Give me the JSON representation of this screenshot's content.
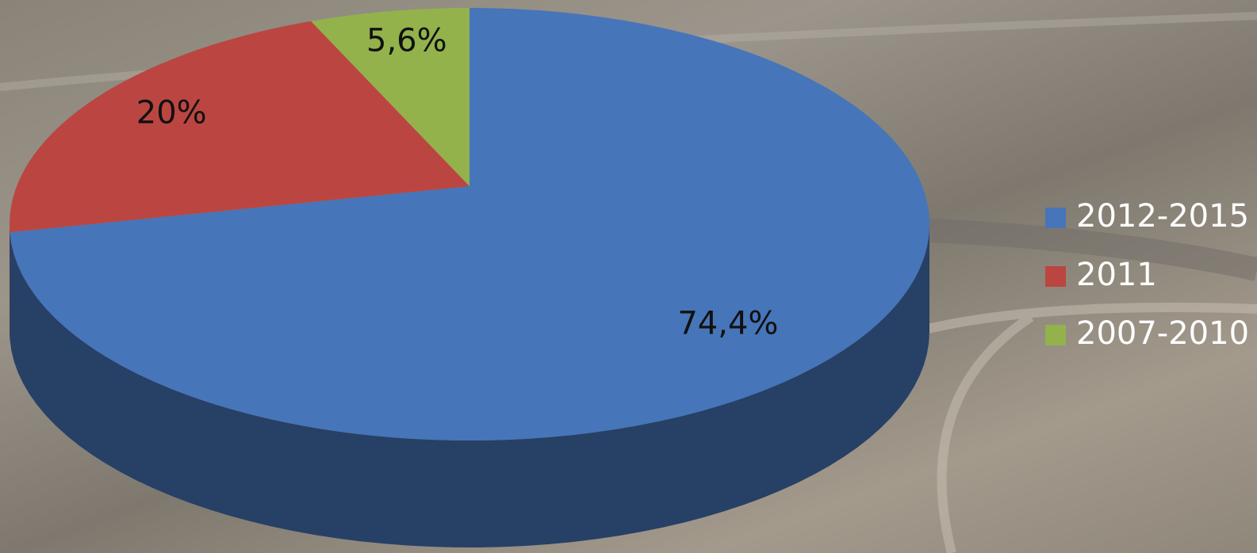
{
  "chart_data": {
    "type": "pie",
    "categories": [
      "2012-2015",
      "2011",
      "2007-2010"
    ],
    "values": [
      74.4,
      20,
      5.6
    ],
    "value_labels": [
      "74,4%",
      "20%",
      "5,6%"
    ],
    "colors": [
      "#4675b9",
      "#bb4641",
      "#93b24c"
    ],
    "legend": "right"
  }
}
